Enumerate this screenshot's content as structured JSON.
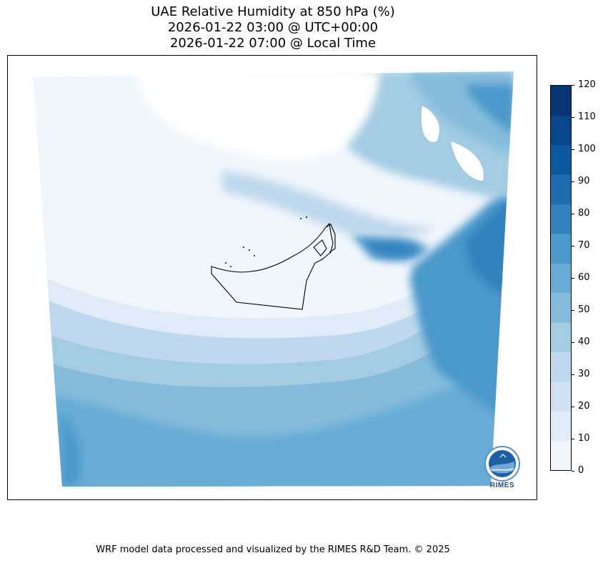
{
  "title": {
    "line1": "UAE Relative Humidity at 850 hPa (%)",
    "line2": "2026-01-22 03:00 @ UTC+00:00",
    "line3": "2026-01-22 07:00 @ Local Time"
  },
  "colorbar": {
    "ticks": [
      "0",
      "10",
      "20",
      "30",
      "40",
      "50",
      "60",
      "70",
      "80",
      "90",
      "100",
      "110",
      "120"
    ],
    "colors": [
      "#f0f6fc",
      "#dfebf7",
      "#d0e2f2",
      "#bfd8ed",
      "#a3cce3",
      "#85bcdc",
      "#67abd5",
      "#4b98ca",
      "#3282bd",
      "#1f6db1",
      "#0d59a1",
      "#08468b",
      "#083473"
    ]
  },
  "logo": {
    "text": "RIMES"
  },
  "footer": "WRF model data processed and visualized by the RIMES R&D Team. © 2025"
}
